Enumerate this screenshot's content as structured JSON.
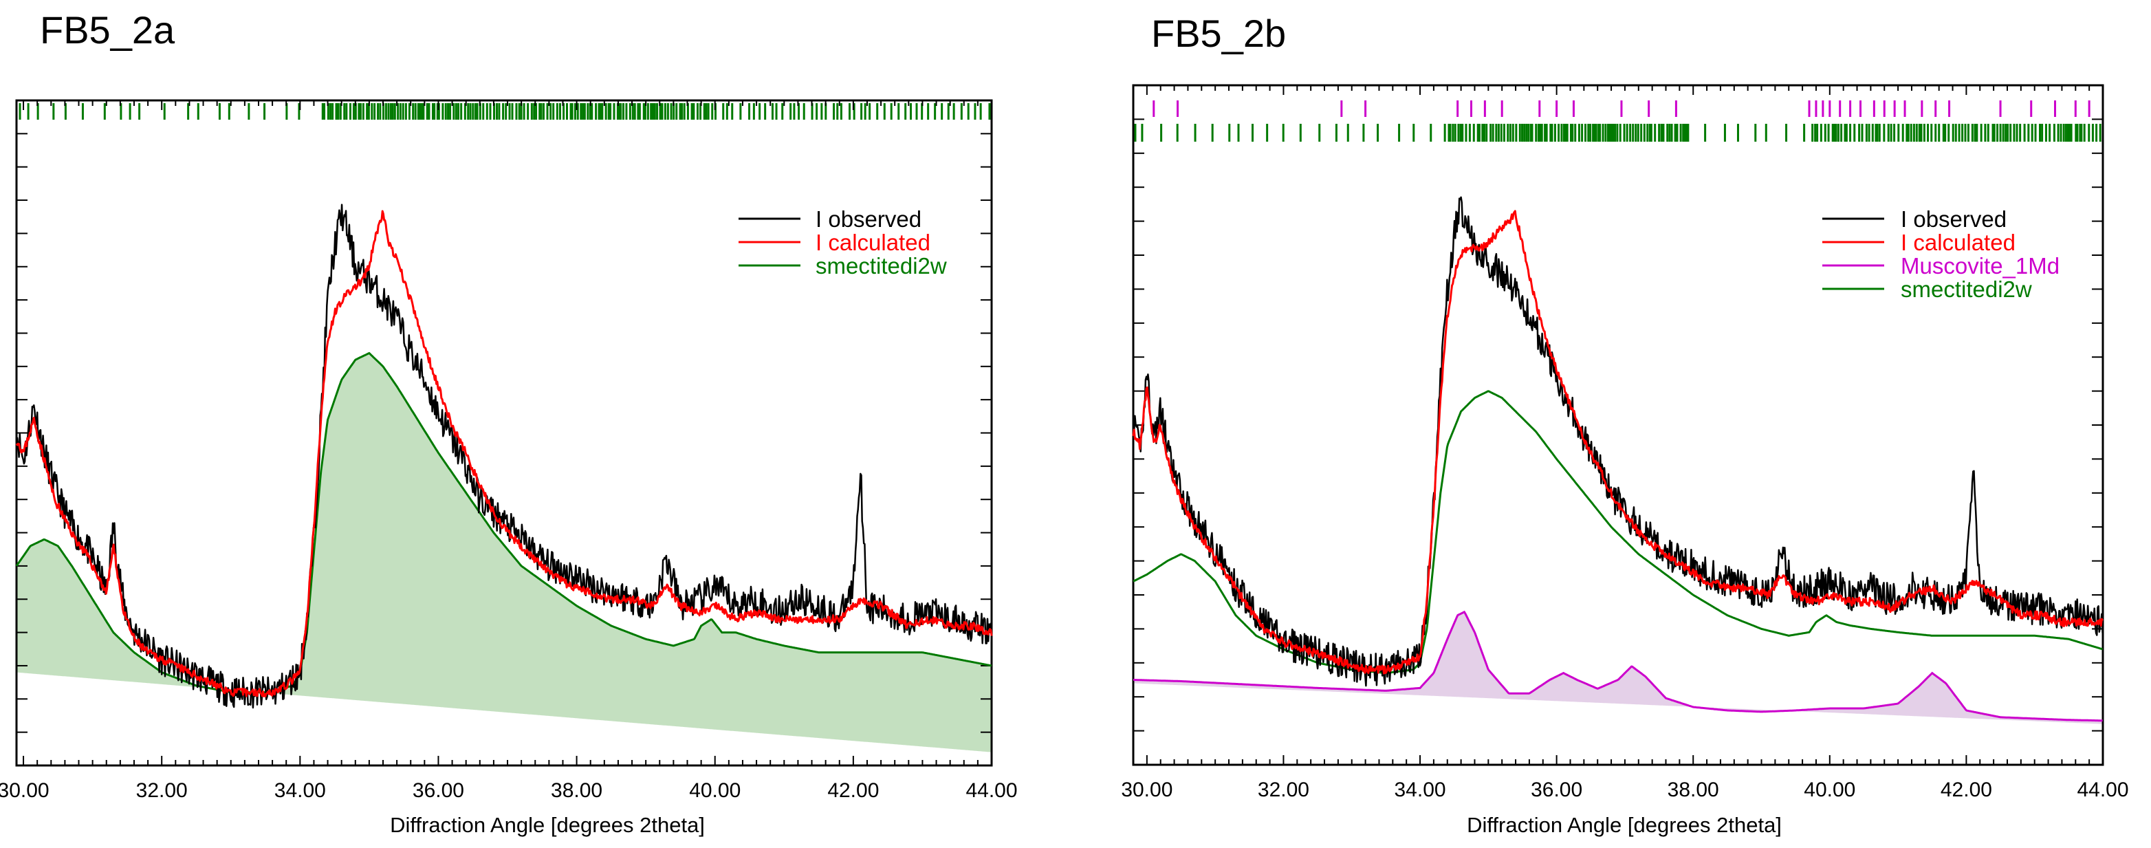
{
  "chart_data": [
    {
      "type": "line",
      "title": "FB5_2a",
      "xlabel": "Diffraction Angle [degrees 2theta]",
      "ylabel": "",
      "xlim": [
        29.9,
        44.0
      ],
      "ylim": [
        0,
        100
      ],
      "xticks": [
        "30.00",
        "32.00",
        "34.00",
        "36.00",
        "38.00",
        "40.00",
        "42.00",
        "44.00"
      ],
      "grid": false,
      "legend_position": "top-right",
      "colors": {
        "observed": "#000000",
        "calculated": "#ff0000",
        "smectite": "#007a00",
        "smectite_fill": "#c4e0c0"
      },
      "legend": [
        "I observed",
        "I calculated",
        "smectitedi2w"
      ],
      "background": {
        "x": [
          29.9,
          44.0
        ],
        "y": [
          14,
          2
        ]
      },
      "series": [
        {
          "name": "I observed",
          "x": [
            29.9,
            30.0,
            30.15,
            30.3,
            30.45,
            30.6,
            30.75,
            30.9,
            31.05,
            31.2,
            31.3,
            31.45,
            31.6,
            31.8,
            32.0,
            32.2,
            32.4,
            32.6,
            32.8,
            33.0,
            33.2,
            33.4,
            33.6,
            33.8,
            34.0,
            34.1,
            34.2,
            34.3,
            34.4,
            34.5,
            34.6,
            34.7,
            34.8,
            34.9,
            35.0,
            35.2,
            35.4,
            35.6,
            35.8,
            36.0,
            36.2,
            36.4,
            36.6,
            36.8,
            37.0,
            37.3,
            37.6,
            37.9,
            38.2,
            38.5,
            38.8,
            39.1,
            39.3,
            39.5,
            39.8,
            40.0,
            40.3,
            40.6,
            40.9,
            41.2,
            41.5,
            41.8,
            42.0,
            42.1,
            42.2,
            42.5,
            42.8,
            43.1,
            43.4,
            43.7,
            44.0
          ],
          "y": [
            50,
            46,
            54,
            47,
            42,
            38,
            35,
            33,
            30,
            26,
            36,
            24,
            20,
            18,
            16,
            15,
            14,
            13,
            12,
            11,
            11,
            11,
            11,
            12,
            14,
            22,
            34,
            52,
            70,
            78,
            83,
            80,
            75,
            74,
            73,
            70,
            67,
            62,
            58,
            53,
            49,
            45,
            40,
            38,
            36,
            33,
            30,
            29,
            27,
            26,
            25,
            24,
            31,
            24,
            25,
            27,
            24,
            25,
            23,
            25,
            24,
            22,
            27,
            45,
            24,
            23,
            22,
            23,
            22,
            21,
            20
          ]
        },
        {
          "name": "I calculated",
          "x": [
            29.9,
            30.0,
            30.15,
            30.3,
            30.45,
            30.6,
            30.75,
            30.9,
            31.05,
            31.2,
            31.3,
            31.45,
            31.6,
            31.8,
            32.0,
            32.2,
            32.4,
            32.6,
            32.8,
            33.0,
            33.2,
            33.4,
            33.6,
            33.8,
            34.0,
            34.1,
            34.2,
            34.3,
            34.4,
            34.5,
            34.6,
            34.7,
            34.8,
            34.9,
            35.0,
            35.1,
            35.2,
            35.3,
            35.4,
            35.6,
            35.8,
            36.0,
            36.2,
            36.4,
            36.6,
            36.8,
            37.0,
            37.3,
            37.6,
            37.9,
            38.2,
            38.5,
            38.8,
            39.1,
            39.3,
            39.5,
            39.8,
            40.0,
            40.3,
            40.6,
            40.9,
            41.2,
            41.5,
            41.8,
            42.1,
            42.4,
            42.8,
            43.1,
            43.4,
            43.7,
            44.0
          ],
          "y": [
            49,
            47,
            52,
            46,
            40,
            37,
            34,
            32,
            29,
            26,
            33,
            23,
            19,
            17,
            16,
            15,
            14,
            13,
            12,
            11,
            11,
            11,
            11,
            12,
            14,
            22,
            36,
            52,
            64,
            68,
            70,
            71,
            72,
            73,
            75,
            80,
            83,
            78,
            76,
            70,
            63,
            57,
            51,
            47,
            42,
            38,
            35,
            32,
            29,
            27,
            26,
            25,
            25,
            24,
            27,
            24,
            23,
            24,
            22,
            23,
            22,
            22,
            22,
            22,
            25,
            24,
            21,
            22,
            21,
            21,
            20
          ]
        },
        {
          "name": "smectitedi2w",
          "x": [
            29.9,
            30.1,
            30.3,
            30.5,
            30.7,
            31.0,
            31.3,
            31.6,
            32.0,
            32.5,
            33.0,
            33.5,
            33.9,
            34.0,
            34.1,
            34.2,
            34.3,
            34.4,
            34.6,
            34.8,
            35.0,
            35.2,
            35.4,
            35.7,
            36.0,
            36.4,
            36.8,
            37.2,
            37.6,
            38.0,
            38.5,
            39.0,
            39.4,
            39.7,
            39.8,
            39.95,
            40.1,
            40.3,
            40.6,
            41.0,
            41.5,
            42.0,
            42.5,
            43.0,
            43.5,
            44.0
          ],
          "y": [
            30,
            33,
            34,
            33,
            30,
            25,
            20,
            17,
            14,
            12,
            11,
            11,
            12,
            14,
            20,
            32,
            44,
            52,
            58,
            61,
            62,
            60,
            57,
            52,
            47,
            41,
            35,
            30,
            27,
            24,
            21,
            19,
            18,
            19,
            21,
            22,
            20,
            20,
            19,
            18,
            17,
            17,
            17,
            17,
            16,
            15
          ]
        }
      ]
    },
    {
      "type": "line",
      "title": "FB5_2b",
      "xlabel": "Diffraction Angle [degrees 2theta]",
      "ylabel": "",
      "xlim": [
        29.8,
        44.0
      ],
      "ylim": [
        0,
        100
      ],
      "xticks": [
        "30.00",
        "32.00",
        "34.00",
        "36.00",
        "38.00",
        "40.00",
        "42.00",
        "44.00"
      ],
      "grid": false,
      "legend_position": "top-right",
      "colors": {
        "observed": "#000000",
        "calculated": "#ff0000",
        "muscovite": "#cc00cc",
        "muscovite_fill": "#e4d0e8",
        "smectite": "#007a00"
      },
      "legend": [
        "I observed",
        "I calculated",
        "Muscovite_1Md",
        "smectitedi2w"
      ],
      "background": {
        "x": [
          29.8,
          44.0
        ],
        "y": [
          12,
          6
        ]
      },
      "series": [
        {
          "name": "I observed",
          "x": [
            29.8,
            29.9,
            30.0,
            30.1,
            30.2,
            30.35,
            30.5,
            30.7,
            30.9,
            31.1,
            31.3,
            31.5,
            31.7,
            32.0,
            32.3,
            32.6,
            32.9,
            33.2,
            33.5,
            33.8,
            34.0,
            34.1,
            34.2,
            34.3,
            34.4,
            34.5,
            34.6,
            34.7,
            34.8,
            34.9,
            35.0,
            35.2,
            35.4,
            35.6,
            35.8,
            36.0,
            36.2,
            36.4,
            36.6,
            36.8,
            37.0,
            37.3,
            37.6,
            37.9,
            38.2,
            38.5,
            38.8,
            39.1,
            39.3,
            39.5,
            39.8,
            40.0,
            40.3,
            40.6,
            40.9,
            41.2,
            41.5,
            41.8,
            42.0,
            42.1,
            42.2,
            42.5,
            42.8,
            43.1,
            43.4,
            43.7,
            44.0
          ],
          "y": [
            50,
            46,
            58,
            48,
            52,
            44,
            40,
            36,
            33,
            30,
            26,
            24,
            21,
            18,
            17,
            16,
            15,
            14,
            14,
            15,
            16,
            24,
            38,
            56,
            70,
            78,
            82,
            80,
            76,
            75,
            74,
            72,
            70,
            66,
            62,
            57,
            53,
            48,
            44,
            40,
            37,
            34,
            31,
            30,
            28,
            27,
            26,
            25,
            31,
            25,
            26,
            27,
            25,
            26,
            24,
            26,
            25,
            24,
            28,
            45,
            25,
            24,
            23,
            23,
            22,
            22,
            21
          ]
        },
        {
          "name": "I calculated",
          "x": [
            29.8,
            29.9,
            30.0,
            30.1,
            30.2,
            30.35,
            30.5,
            30.7,
            30.9,
            31.1,
            31.3,
            31.5,
            31.7,
            32.0,
            32.3,
            32.6,
            32.9,
            33.2,
            33.5,
            33.8,
            34.0,
            34.1,
            34.2,
            34.3,
            34.4,
            34.5,
            34.6,
            34.7,
            34.8,
            34.9,
            35.0,
            35.2,
            35.4,
            35.6,
            35.8,
            36.0,
            36.2,
            36.4,
            36.6,
            36.8,
            37.0,
            37.3,
            37.6,
            37.9,
            38.2,
            38.5,
            38.8,
            39.1,
            39.3,
            39.5,
            39.8,
            40.0,
            40.3,
            40.6,
            40.9,
            41.2,
            41.5,
            41.8,
            42.1,
            42.4,
            42.8,
            43.1,
            43.4,
            43.7,
            44.0
          ],
          "y": [
            49,
            47,
            56,
            47,
            50,
            43,
            39,
            35,
            32,
            29,
            26,
            23,
            20,
            18,
            17,
            16,
            15,
            14,
            14,
            15,
            16,
            24,
            38,
            54,
            66,
            72,
            75,
            76,
            76,
            76,
            77,
            79,
            81,
            72,
            64,
            58,
            53,
            48,
            44,
            40,
            37,
            33,
            31,
            29,
            27,
            26,
            26,
            25,
            28,
            25,
            24,
            25,
            24,
            24,
            23,
            25,
            26,
            24,
            27,
            25,
            22,
            22,
            21,
            21,
            21
          ]
        },
        {
          "name": "Muscovite_1Md",
          "x": [
            29.8,
            30.5,
            31.5,
            32.5,
            33.5,
            34.0,
            34.2,
            34.4,
            34.55,
            34.65,
            34.8,
            35.0,
            35.3,
            35.6,
            35.9,
            36.1,
            36.3,
            36.6,
            36.9,
            37.1,
            37.3,
            37.6,
            38.0,
            38.5,
            39.0,
            39.5,
            40.0,
            40.5,
            41.0,
            41.3,
            41.5,
            41.7,
            42.0,
            42.5,
            43.0,
            43.5,
            44.0
          ],
          "y": [
            12.5,
            12.3,
            11.8,
            11.3,
            10.9,
            11.3,
            13.5,
            18.5,
            22,
            22.5,
            19.5,
            14,
            10.5,
            10.5,
            12.5,
            13.5,
            12.5,
            11.2,
            12.5,
            14.5,
            13,
            9.8,
            8.5,
            8.0,
            7.8,
            8.0,
            8.3,
            8.3,
            9.0,
            11.5,
            13.5,
            12,
            8.0,
            7.0,
            6.8,
            6.6,
            6.5
          ]
        },
        {
          "name": "smectitedi2w",
          "x": [
            29.8,
            30.0,
            30.3,
            30.5,
            30.7,
            31.0,
            31.3,
            31.6,
            32.0,
            32.5,
            33.0,
            33.5,
            33.9,
            34.0,
            34.1,
            34.2,
            34.3,
            34.4,
            34.6,
            34.8,
            35.0,
            35.2,
            35.4,
            35.7,
            36.0,
            36.4,
            36.8,
            37.2,
            37.6,
            38.0,
            38.5,
            39.0,
            39.4,
            39.7,
            39.8,
            39.95,
            40.1,
            40.3,
            40.6,
            41.0,
            41.5,
            42.0,
            42.5,
            43.0,
            43.5,
            44.0
          ],
          "y": [
            27,
            28,
            30,
            31,
            30,
            27,
            22,
            19,
            17,
            15,
            14,
            13.5,
            14,
            15,
            20,
            30,
            40,
            47,
            52,
            54,
            55,
            54,
            52,
            49,
            45,
            40,
            35,
            31,
            28,
            25,
            22,
            20,
            19,
            19.5,
            21,
            22,
            21,
            20.5,
            20,
            19.5,
            19,
            19,
            19,
            19,
            18.5,
            17
          ]
        }
      ]
    }
  ]
}
